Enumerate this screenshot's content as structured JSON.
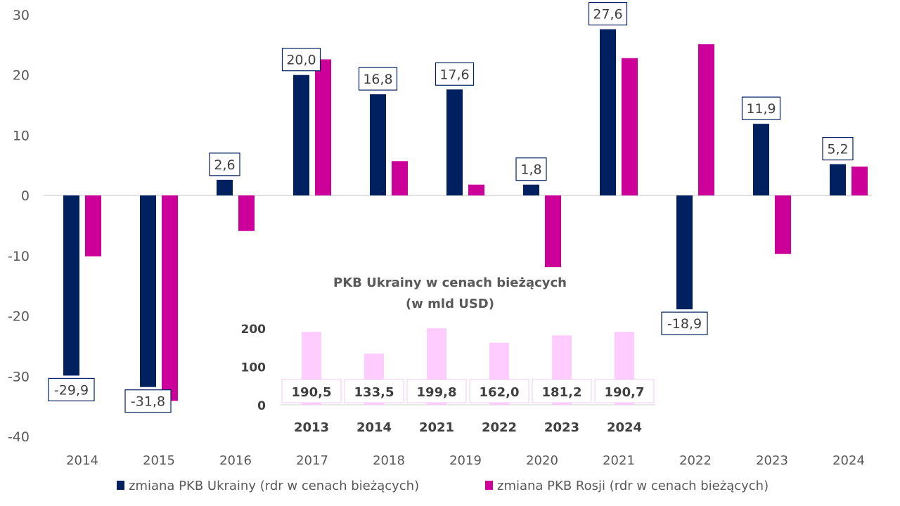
{
  "chart_data": [
    {
      "type": "bar",
      "title": "",
      "xlabel": "",
      "ylabel": "",
      "categories": [
        "2014",
        "2015",
        "2016",
        "2017",
        "2018",
        "2019",
        "2020",
        "2021",
        "2022",
        "2023",
        "2024"
      ],
      "series": [
        {
          "name": "zmiana PKB Ukrainy (rdr w cenach bieżących)",
          "color": "#002060",
          "values": [
            -29.9,
            -31.8,
            2.6,
            20.0,
            16.8,
            17.6,
            1.8,
            27.6,
            -18.9,
            11.9,
            5.2
          ],
          "labels": [
            "-29,9",
            "-31,8",
            "2,6",
            "20,0",
            "16,8",
            "17,6",
            "1,8",
            "27,6",
            "-18,9",
            "11,9",
            "5,2"
          ]
        },
        {
          "name": "zmiana PKB Rosji (rdr w cenach bieżących)",
          "color": "#CC0099",
          "values": [
            -10.1,
            -34.1,
            -5.9,
            22.6,
            5.7,
            1.8,
            -11.9,
            22.8,
            25.1,
            -9.7,
            4.8
          ]
        }
      ],
      "ylim": [
        -40,
        30
      ],
      "yticks": [
        "30",
        "20",
        "10",
        "0",
        "-10",
        "-20",
        "-30",
        "-40"
      ],
      "ytick_values": [
        30,
        20,
        10,
        0,
        -10,
        -20,
        -30,
        -40
      ],
      "grid": false,
      "legend": "bottom"
    },
    {
      "type": "bar",
      "title": "PKB Ukrainy w cenach bieżących",
      "subtitle": "(w mld USD)",
      "categories": [
        "2013",
        "2014",
        "2021",
        "2022",
        "2023",
        "2024"
      ],
      "values": [
        190.5,
        133.5,
        199.8,
        162.0,
        181.2,
        190.7
      ],
      "labels": [
        "190,5",
        "133,5",
        "199,8",
        "162,0",
        "181,2",
        "190,7"
      ],
      "color": "#FFCCFF",
      "ylim": [
        0,
        200
      ],
      "yticks": [
        "200",
        "100",
        "0"
      ],
      "ytick_values": [
        200,
        100,
        0
      ],
      "grid": false,
      "legend": "none"
    }
  ]
}
